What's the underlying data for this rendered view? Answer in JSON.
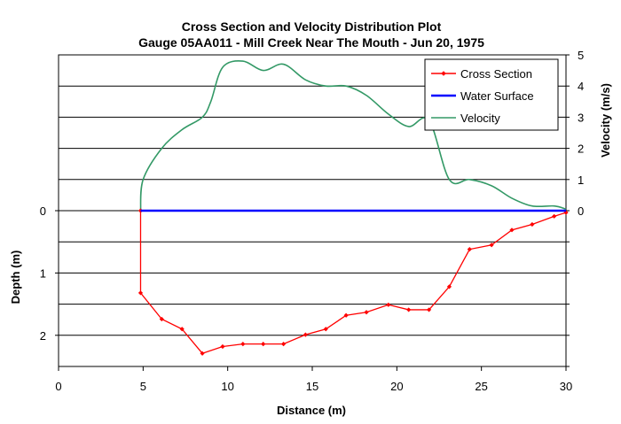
{
  "chart_data": {
    "type": "line",
    "title": "Cross Section and Velocity Distribution Plot",
    "subtitle": "Gauge 05AA011 - Mill Creek Near The Mouth - Jun 20, 1975",
    "xlabel": "Distance (m)",
    "ylabel_left": "Depth (m)",
    "ylabel_right": "Velocity (m/s)",
    "xlim": [
      0,
      30
    ],
    "x_ticks": [
      "0",
      "5",
      "10",
      "15",
      "20",
      "25",
      "30"
    ],
    "depth_ticks": [
      "0",
      "1",
      "2"
    ],
    "velocity_ticks": [
      "0",
      "1",
      "2",
      "3",
      "4",
      "5"
    ],
    "grid": "horizontal",
    "legend_position": "top-right",
    "series": [
      {
        "name": "Cross Section",
        "color": "#ff0000",
        "marker": "diamond",
        "axis": "depth",
        "x": [
          4.85,
          4.85,
          6.1,
          7.3,
          8.5,
          9.7,
          10.9,
          12.1,
          13.3,
          14.6,
          15.8,
          17.0,
          18.2,
          19.5,
          20.7,
          21.9,
          23.1,
          24.3,
          25.6,
          26.8,
          28.0,
          29.3,
          30.0
        ],
        "y": [
          0.0,
          1.32,
          1.74,
          1.9,
          2.29,
          2.18,
          2.14,
          2.14,
          2.14,
          1.99,
          1.9,
          1.68,
          1.63,
          1.51,
          1.59,
          1.59,
          1.22,
          0.62,
          0.55,
          0.31,
          0.22,
          0.09,
          0.03
        ]
      },
      {
        "name": "Water Surface",
        "color": "#0000ff",
        "axis": "depth",
        "x": [
          4.85,
          30.0
        ],
        "y": [
          0,
          0
        ]
      },
      {
        "name": "Velocity",
        "color": "#339966",
        "axis": "velocity",
        "x": [
          4.85,
          5.0,
          6.1,
          7.3,
          8.5,
          9.0,
          9.7,
          10.9,
          12.1,
          13.3,
          14.6,
          15.8,
          17.0,
          18.2,
          19.5,
          20.7,
          21.9,
          23.1,
          24.3,
          25.6,
          26.8,
          28.0,
          29.3,
          30.0
        ],
        "y": [
          0.0,
          1.0,
          2.0,
          2.6,
          3.0,
          3.5,
          4.6,
          4.8,
          4.5,
          4.7,
          4.2,
          4.0,
          4.0,
          3.7,
          3.1,
          2.7,
          2.9,
          1.0,
          1.0,
          0.8,
          0.4,
          0.15,
          0.15,
          0.05
        ]
      }
    ]
  }
}
